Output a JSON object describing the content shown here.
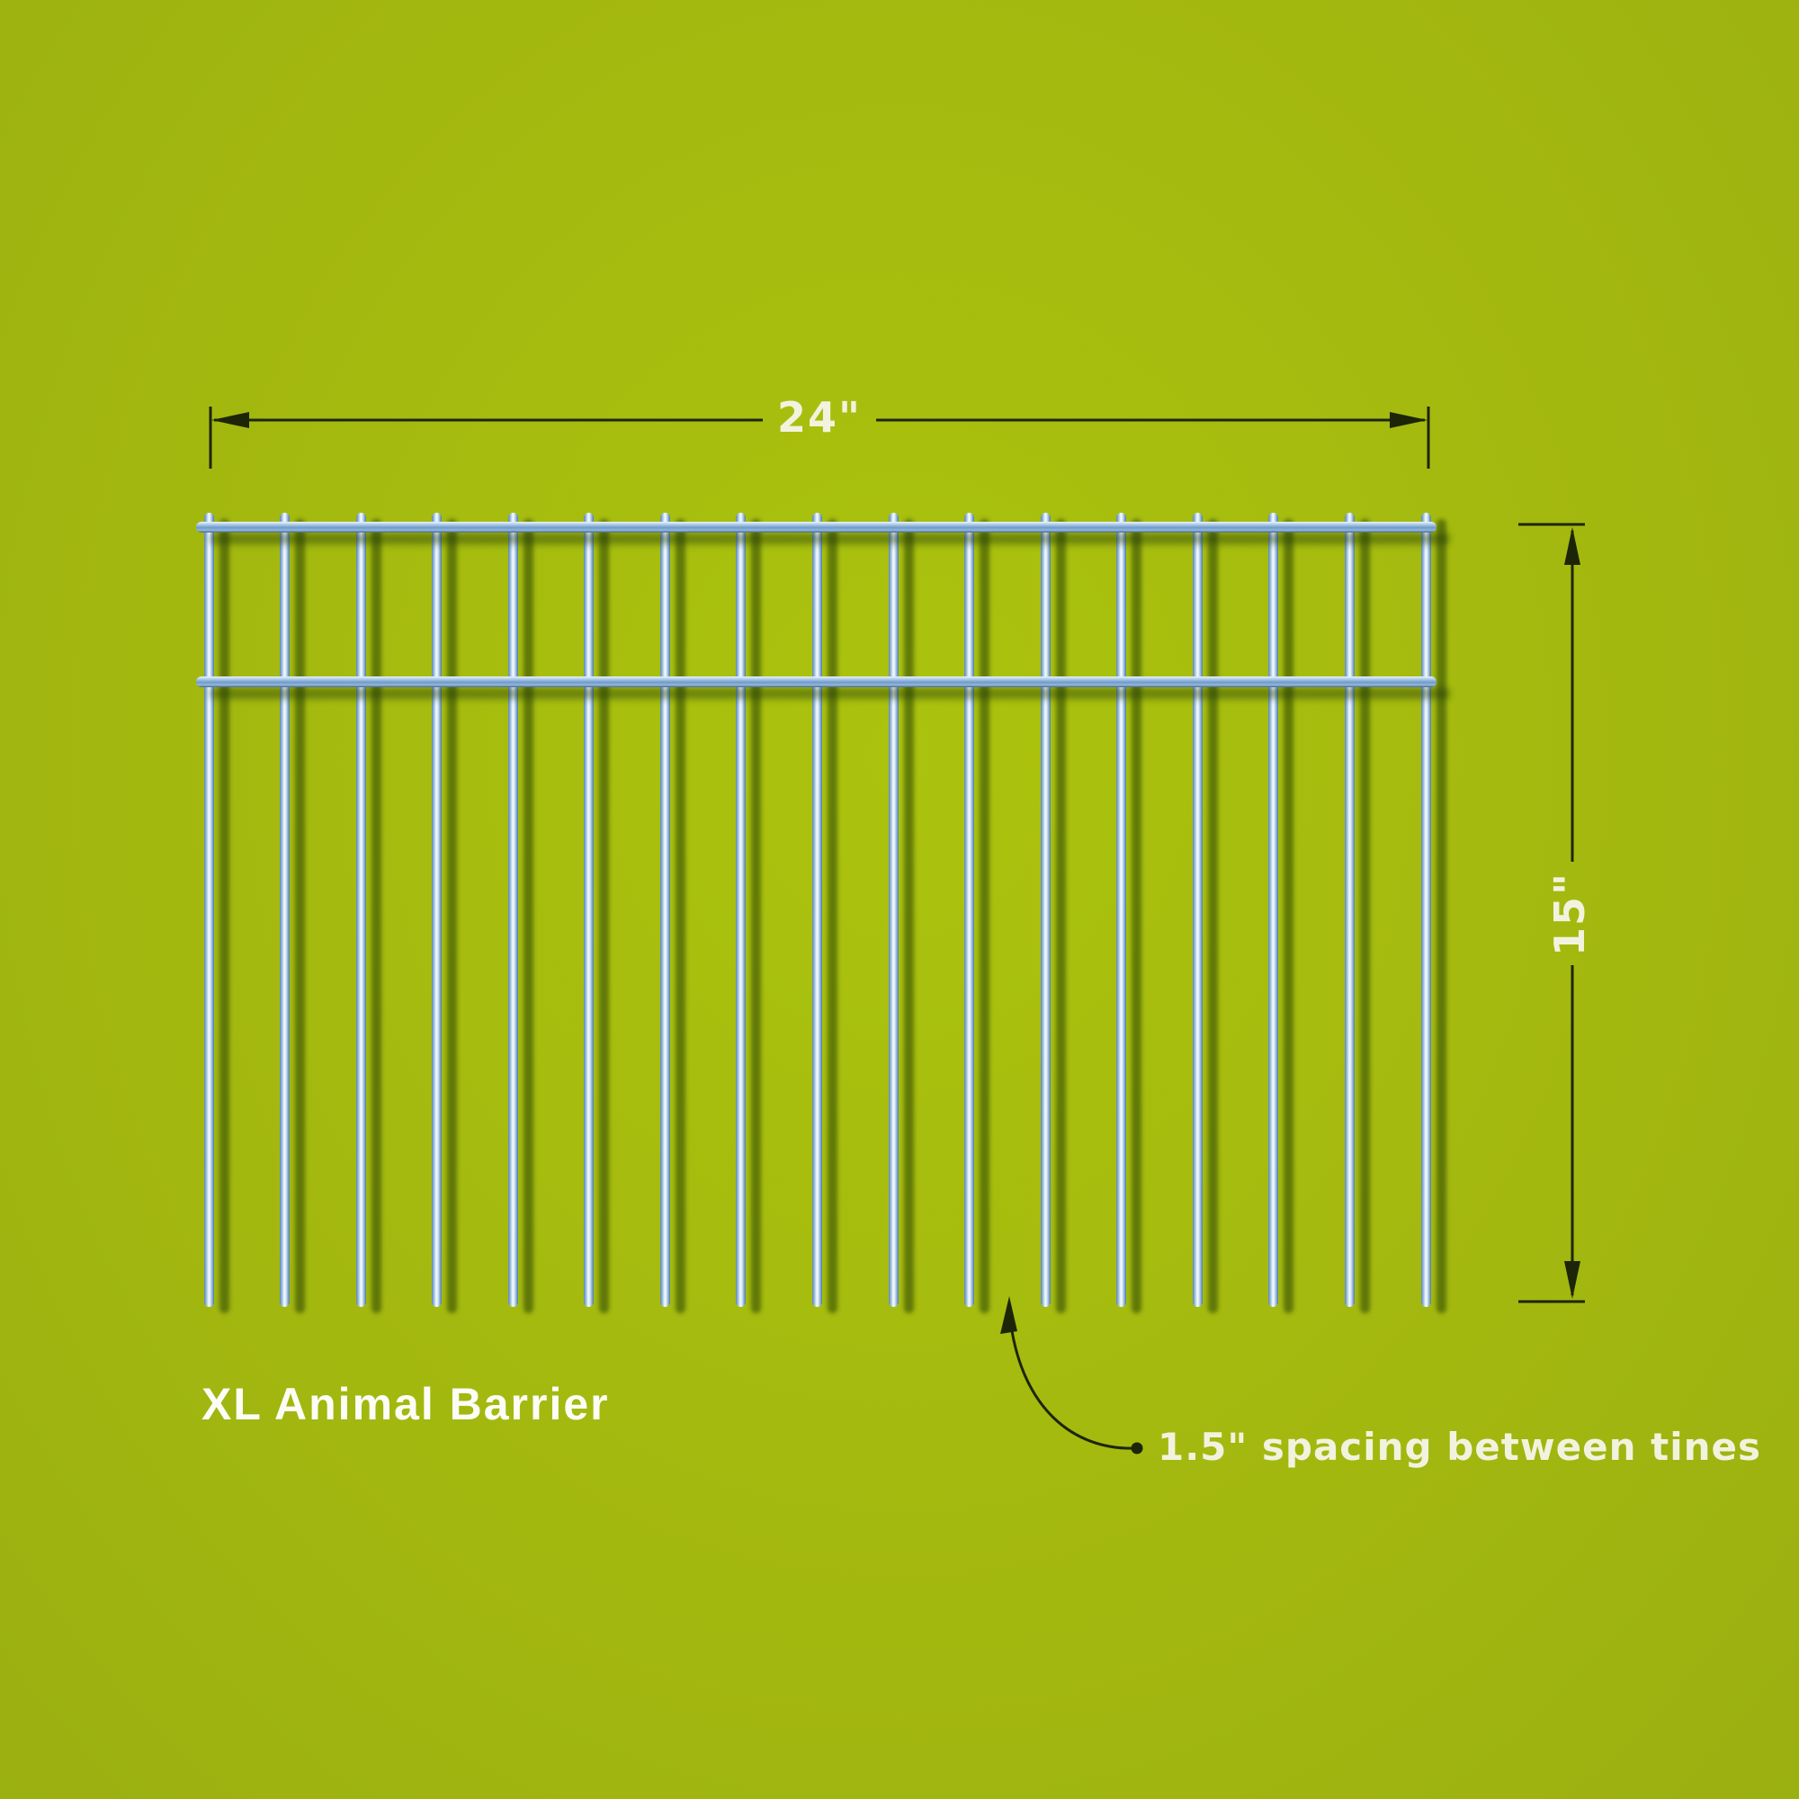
{
  "diagram": {
    "title": "XL Animal Barrier",
    "width_dimension": {
      "label": "24\""
    },
    "height_dimension": {
      "label": "15\""
    },
    "annotation": {
      "label": "1.5\" spacing between tines"
    },
    "fence": {
      "tine_count": 17,
      "rail_count": 2,
      "width_inches": 24,
      "height_inches": 15,
      "tine_spacing_inches": 1.5
    }
  },
  "colors": {
    "background_green": "#a3b80f",
    "wire_blue": "#7da4cf",
    "wire_highlight": "#f6fbff",
    "wire_shadow_green": "#2e4a08",
    "dimension_line": "#1d2508",
    "dimension_text": "#f2f3de",
    "title_text": "#fcfdf6"
  }
}
